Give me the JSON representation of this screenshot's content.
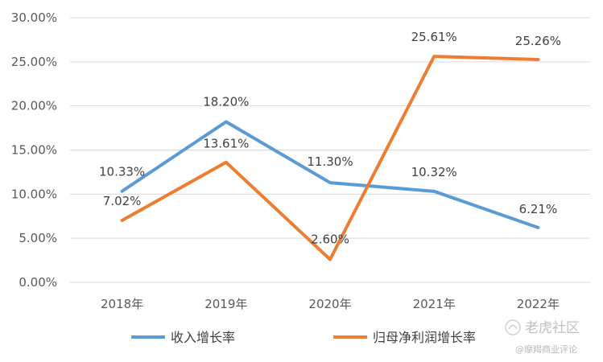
{
  "chart_data": {
    "type": "line",
    "categories": [
      "2018年",
      "2019年",
      "2020年",
      "2021年",
      "2022年"
    ],
    "y_ticks": [
      "0.00%",
      "5.00%",
      "10.00%",
      "15.00%",
      "20.00%",
      "25.00%",
      "30.00%"
    ],
    "ylim": [
      0,
      30
    ],
    "grid": true,
    "legend_position": "bottom",
    "series": [
      {
        "name": "收入增长率",
        "color": "#5B9BD5",
        "values": [
          10.33,
          18.2,
          11.3,
          10.32,
          6.21
        ],
        "labels": [
          "10.33%",
          "18.20%",
          "11.30%",
          "10.32%",
          "6.21%"
        ]
      },
      {
        "name": "归母净利润增长率",
        "color": "#ED7D31",
        "values": [
          7.02,
          13.61,
          2.6,
          25.61,
          25.26
        ],
        "labels": [
          "7.02%",
          "13.61%",
          "2.60%",
          "25.61%",
          "25.26%"
        ]
      }
    ]
  },
  "watermark": {
    "brand": "老虎社区",
    "author": "@摩羯商业评论",
    "icon": "tiger-logo-icon"
  }
}
